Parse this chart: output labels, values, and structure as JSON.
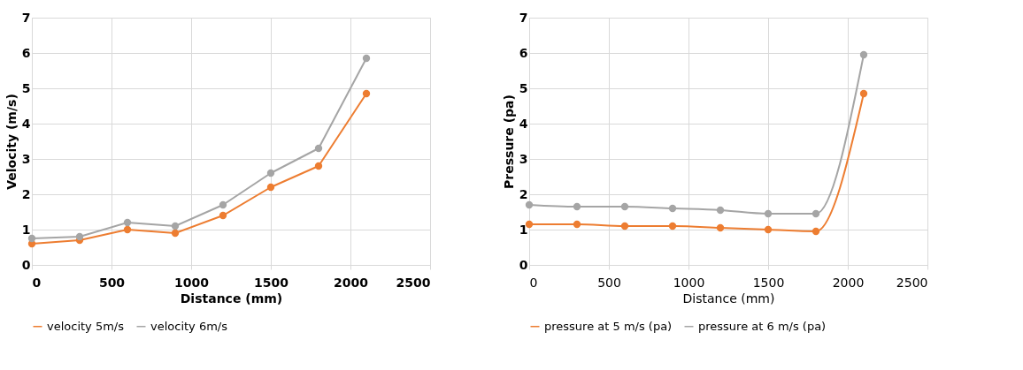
{
  "chart_data": [
    {
      "type": "line",
      "xlabel": "Distance (mm)",
      "ylabel": "Velocity (m/s)",
      "x": [
        0,
        300,
        600,
        900,
        1200,
        1500,
        1800,
        2100
      ],
      "series": [
        {
          "name": "velocity 5m/s",
          "color": "#ed7d31",
          "values": [
            0.6,
            0.7,
            1.0,
            0.9,
            1.4,
            2.2,
            2.8,
            4.85
          ]
        },
        {
          "name": "velocity 6m/s",
          "color": "#a5a5a5",
          "values": [
            0.75,
            0.8,
            1.2,
            1.1,
            1.7,
            2.6,
            3.3,
            5.85
          ]
        }
      ],
      "xlim": [
        0,
        2500
      ],
      "xticks": [
        0,
        500,
        1000,
        1500,
        2000,
        2500
      ],
      "ylim": [
        0,
        7
      ],
      "yticks": [
        0,
        1,
        2,
        3,
        4,
        5,
        6,
        7
      ],
      "grid": true,
      "legend": "bottom",
      "marker": "circle",
      "line_style": "solid"
    },
    {
      "type": "line",
      "xlabel": "Distance (mm)",
      "ylabel": "Pressure (pa)",
      "x": [
        0,
        300,
        600,
        900,
        1200,
        1500,
        1800,
        2100
      ],
      "series": [
        {
          "name": "pressure at 5 m/s (pa)",
          "color": "#ed7d31",
          "values": [
            1.15,
            1.15,
            1.1,
            1.1,
            1.05,
            1.0,
            0.95,
            4.85
          ]
        },
        {
          "name": "pressure at 6 m/s (pa)",
          "color": "#a5a5a5",
          "values": [
            1.7,
            1.65,
            1.65,
            1.6,
            1.55,
            1.45,
            1.45,
            5.95
          ]
        }
      ],
      "xlim": [
        0,
        2500
      ],
      "xticks": [
        0,
        500,
        1000,
        1500,
        2000,
        2500
      ],
      "ylim": [
        0,
        7
      ],
      "yticks": [
        0,
        1,
        2,
        3,
        4,
        5,
        6,
        7
      ],
      "grid": true,
      "legend": "bottom",
      "marker": "circle",
      "line_style": "solid"
    }
  ]
}
